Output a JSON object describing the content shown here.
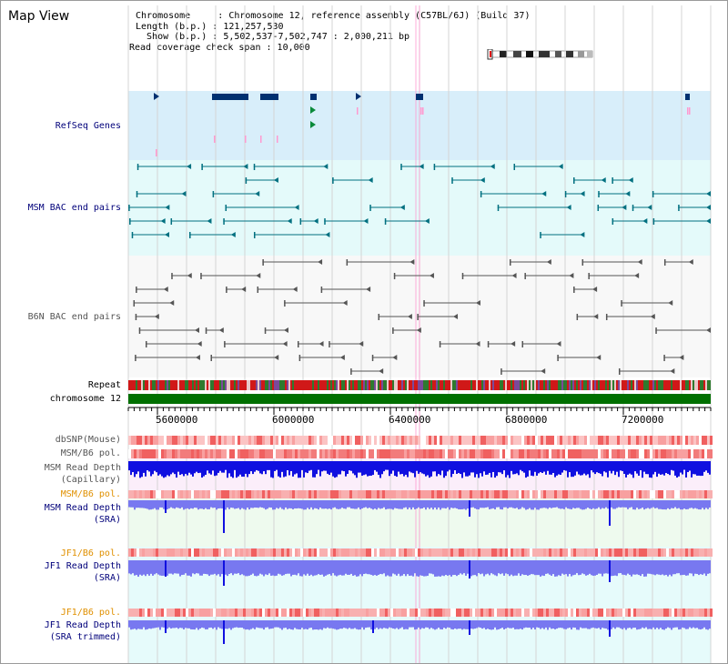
{
  "page": {
    "title": "Map View"
  },
  "info": {
    "chromosome": "Chromosome     : Chromosome 12, reference assembly (C57BL/6J) (Build 37)",
    "length": "Length (b.p.) : 121,257,530",
    "show": "  Show (b.p.) : 5,502,537-7,502,747 : 2,000,211 bp",
    "span": "Read coverage check span : 10,000"
  },
  "tracks": {
    "refseq": "RefSeq Genes",
    "msm_bac": "MSM BAC end pairs",
    "b6n_bac": "B6N BAC end pairs",
    "repeat": "Repeat",
    "chromosome": "chromosome 12",
    "dbsnp": "dbSNP(Mouse)",
    "msm_b6_pol_1": "MSM/B6 pol.",
    "msm_rd_cap_1": "MSM Read Depth",
    "msm_rd_cap_2": "(Capillary)",
    "msm_b6_pol_2": "MSM/B6 pol.",
    "msm_rd_sra_1": "MSM Read Depth",
    "msm_rd_sra_2": "(SRA)",
    "jf1_b6_pol_1": "JF1/B6 pol.",
    "jf1_rd_sra_1": "JF1 Read Depth",
    "jf1_rd_sra_2": "(SRA)",
    "jf1_b6_pol_2": "JF1/B6 pol.",
    "jf1_rd_trim_1": "JF1 Read Depth",
    "jf1_rd_trim_2": "(SRA trimmed)"
  },
  "axis": {
    "ticks": [
      "5600000",
      "6000000",
      "6400000",
      "6800000",
      "7200000"
    ]
  },
  "colors": {
    "refseq_bg": "#d8eefa",
    "msm_bg": "#e4fafa",
    "b6n_bg": "#f8f8f8",
    "chromosome": "#007000",
    "gene": "#003070",
    "msm_bac": "#007080",
    "b6n_bac": "#555555",
    "depth_blue": "#1010e0",
    "depth_light": "#7878f0",
    "highlight": "#ff9ad0"
  }
}
